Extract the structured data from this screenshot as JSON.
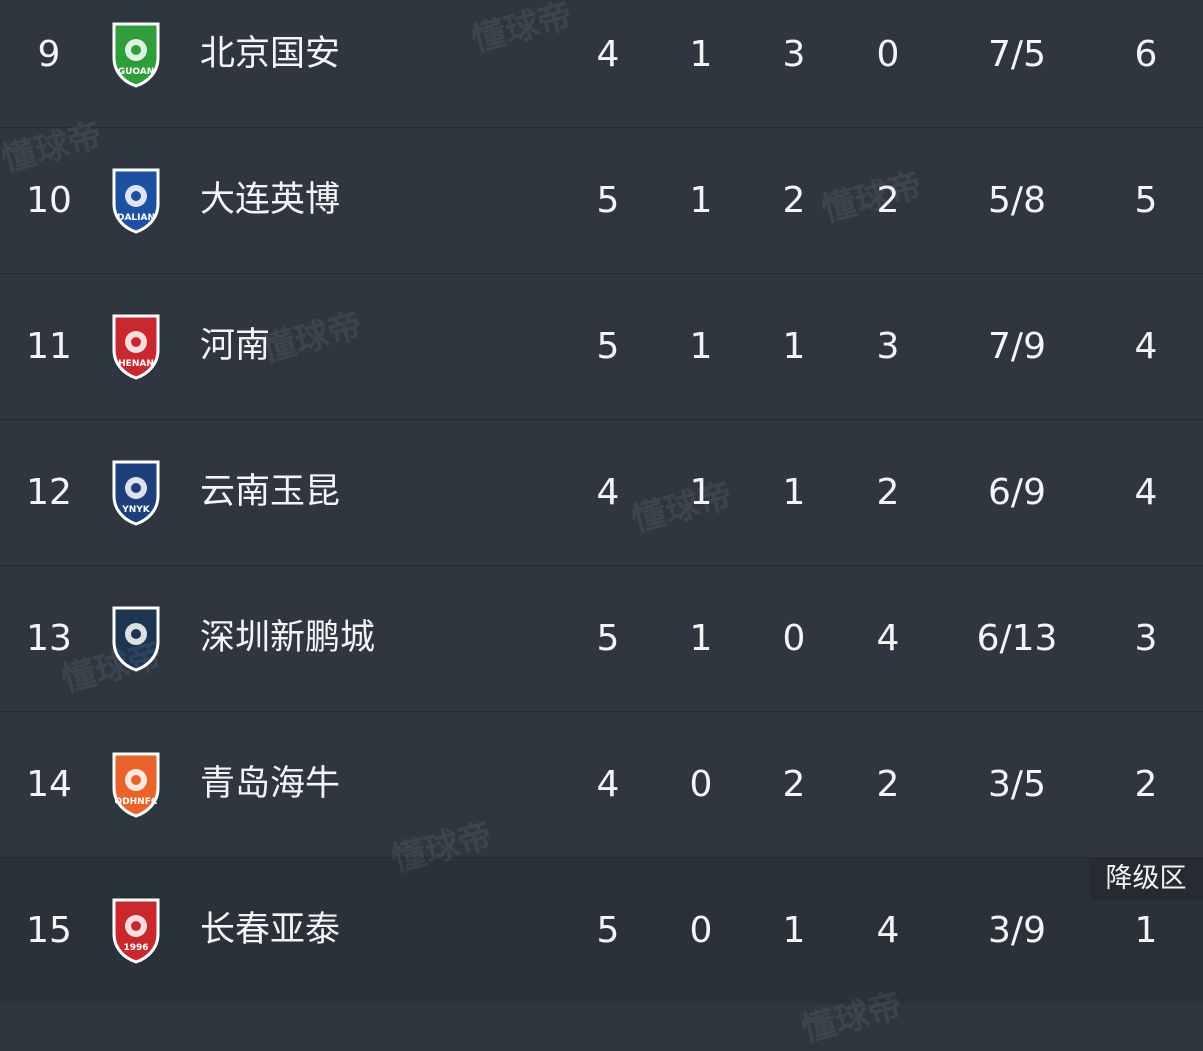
{
  "rows": [
    {
      "rank": "9",
      "team": "北京国安",
      "played": "4",
      "won": "1",
      "drawn": "3",
      "lost": "0",
      "goals": "7/5",
      "points": "6",
      "logo": {
        "name": "beijing-guoan-logo",
        "color": "#2e9e3a",
        "text": "GUOAN"
      }
    },
    {
      "rank": "10",
      "team": "大连英博",
      "played": "5",
      "won": "1",
      "drawn": "2",
      "lost": "2",
      "goals": "5/8",
      "points": "5",
      "logo": {
        "name": "dalian-yingbo-logo",
        "color": "#1f4fa0",
        "text": "DALIAN"
      }
    },
    {
      "rank": "11",
      "team": "河南",
      "played": "5",
      "won": "1",
      "drawn": "1",
      "lost": "3",
      "goals": "7/9",
      "points": "4",
      "logo": {
        "name": "henan-logo",
        "color": "#c8282e",
        "text": "HENAN"
      }
    },
    {
      "rank": "12",
      "team": "云南玉昆",
      "played": "4",
      "won": "1",
      "drawn": "1",
      "lost": "2",
      "goals": "6/9",
      "points": "4",
      "logo": {
        "name": "yunnan-yukun-logo",
        "color": "#1f3f7a",
        "text": "YNYK"
      }
    },
    {
      "rank": "13",
      "team": "深圳新鹏城",
      "played": "5",
      "won": "1",
      "drawn": "0",
      "lost": "4",
      "goals": "6/13",
      "points": "3",
      "logo": {
        "name": "shenzhen-peng-city-logo",
        "color": "#1e3550",
        "text": ""
      }
    },
    {
      "rank": "14",
      "team": "青岛海牛",
      "played": "4",
      "won": "0",
      "drawn": "2",
      "lost": "2",
      "goals": "3/5",
      "points": "2",
      "logo": {
        "name": "qingdao-hainiu-logo",
        "color": "#e8642a",
        "text": "QDHNFC"
      }
    },
    {
      "rank": "15",
      "team": "长春亚泰",
      "played": "5",
      "won": "0",
      "drawn": "1",
      "lost": "4",
      "goals": "3/9",
      "points": "1",
      "logo": {
        "name": "changchun-yatai-logo",
        "color": "#c8282e",
        "text": "1996"
      }
    }
  ],
  "relegation_label": "降级区",
  "watermark": "懂球帝"
}
